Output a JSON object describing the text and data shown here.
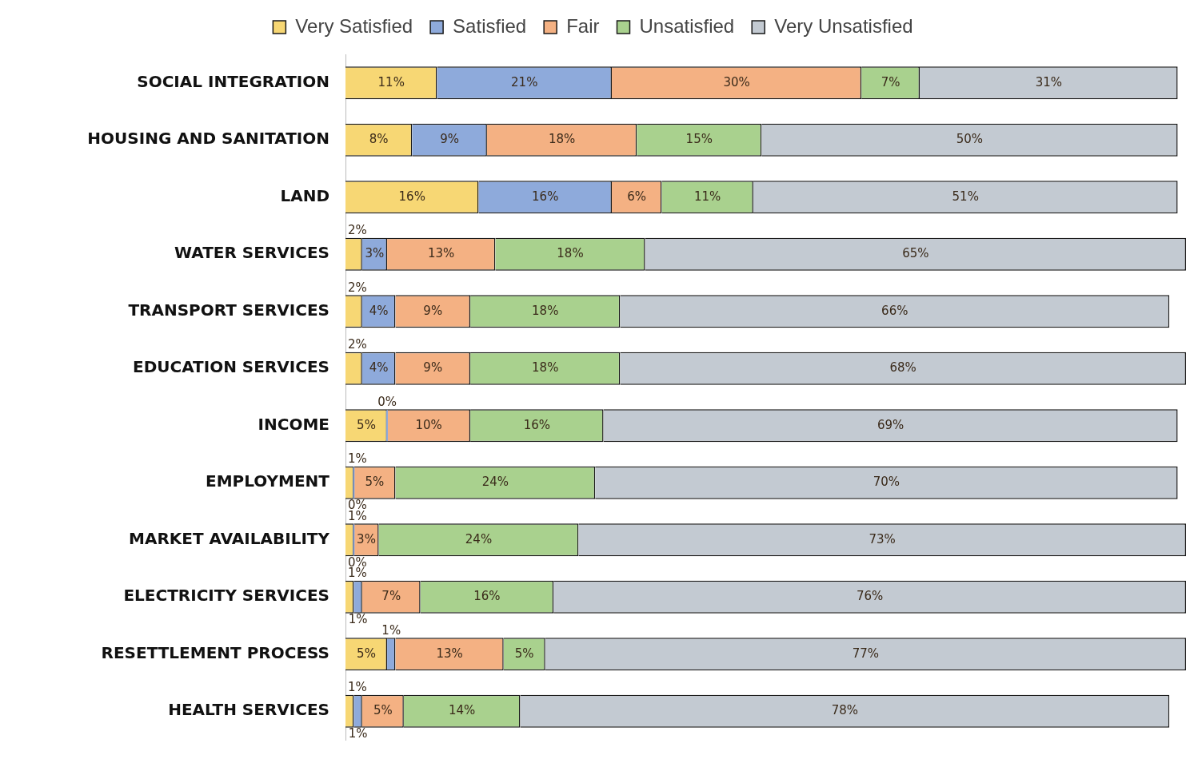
{
  "chart_data": {
    "type": "bar",
    "orientation": "horizontal",
    "stacked": true,
    "legend": "top",
    "categories": [
      "SOCIAL INTEGRATION",
      "HOUSING AND SANITATION",
      "LAND",
      "WATER SERVICES",
      "TRANSPORT SERVICES",
      "EDUCATION SERVICES",
      "INCOME",
      "EMPLOYMENT",
      "MARKET AVAILABILITY",
      "ELECTRICITY SERVICES",
      "RESETTLEMENT PROCESS",
      "HEALTH SERVICES"
    ],
    "series": [
      {
        "name": "Very Satisfied",
        "color": "#f7d774",
        "values": [
          11,
          8,
          16,
          2,
          2,
          2,
          5,
          1,
          1,
          1,
          5,
          1
        ],
        "value_labels": [
          "11%",
          "8%",
          "16%",
          "2%",
          "2%",
          "2%",
          "5%",
          "1%",
          "1%",
          "1%",
          "5%",
          "1%"
        ]
      },
      {
        "name": "Satisfied",
        "color": "#8eaadb",
        "values": [
          21,
          9,
          16,
          3,
          4,
          4,
          0,
          0,
          0,
          1,
          1,
          1
        ],
        "value_labels": [
          "21%",
          "9%",
          "16%",
          "3%",
          "4%",
          "4%",
          "0%",
          "0%",
          "0%",
          "1%",
          "1%",
          "1%"
        ]
      },
      {
        "name": "Fair",
        "color": "#f4b183",
        "values": [
          30,
          18,
          6,
          13,
          9,
          9,
          10,
          5,
          3,
          7,
          13,
          5
        ],
        "value_labels": [
          "30%",
          "18%",
          "6%",
          "13%",
          "9%",
          "9%",
          "10%",
          "5%",
          "3%",
          "7%",
          "13%",
          "5%"
        ]
      },
      {
        "name": "Unsatisfied",
        "color": "#a9d18e",
        "values": [
          7,
          15,
          11,
          18,
          18,
          18,
          16,
          24,
          24,
          16,
          5,
          14
        ],
        "value_labels": [
          "7%",
          "15%",
          "11%",
          "18%",
          "18%",
          "18%",
          "16%",
          "24%",
          "24%",
          "16%",
          "5%",
          "14%"
        ]
      },
      {
        "name": "Very Unsatisfied",
        "color": "#c3cad2",
        "values": [
          31,
          50,
          51,
          65,
          66,
          68,
          69,
          70,
          73,
          76,
          77,
          78
        ],
        "value_labels": [
          "31%",
          "50%",
          "51%",
          "65%",
          "66%",
          "68%",
          "69%",
          "70%",
          "73%",
          "76%",
          "77%",
          "78%"
        ]
      }
    ]
  }
}
